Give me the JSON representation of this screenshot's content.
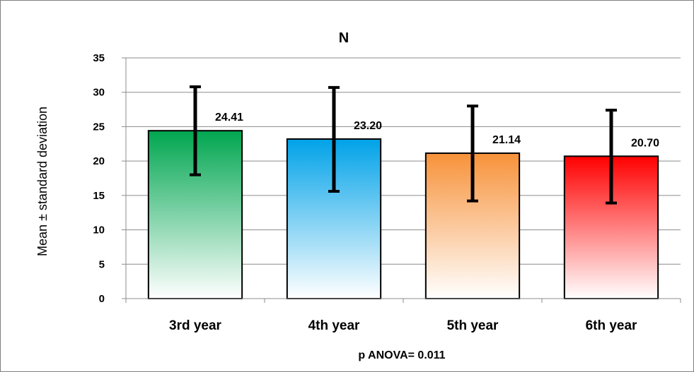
{
  "chart_data": {
    "type": "bar",
    "title": "N",
    "ylabel": "Mean ± standard deviation",
    "xlabel": "p ANOVA= 0.011",
    "categories": [
      "3rd year",
      "4th year",
      "5th year",
      "6th year"
    ],
    "values": [
      24.41,
      23.2,
      21.14,
      20.7
    ],
    "value_labels": [
      "24.41",
      "23.20",
      "21.14",
      "20.70"
    ],
    "error_low": [
      18.0,
      15.6,
      14.2,
      13.9
    ],
    "error_high": [
      30.8,
      30.7,
      28.0,
      27.4
    ],
    "ylim": [
      0,
      35
    ],
    "yticks": [
      0,
      5,
      10,
      15,
      20,
      25,
      30,
      35
    ],
    "grid": true,
    "legend": "none",
    "colors": [
      "#00a650",
      "#00a2e8",
      "#f7923a",
      "#ff0000"
    ]
  }
}
